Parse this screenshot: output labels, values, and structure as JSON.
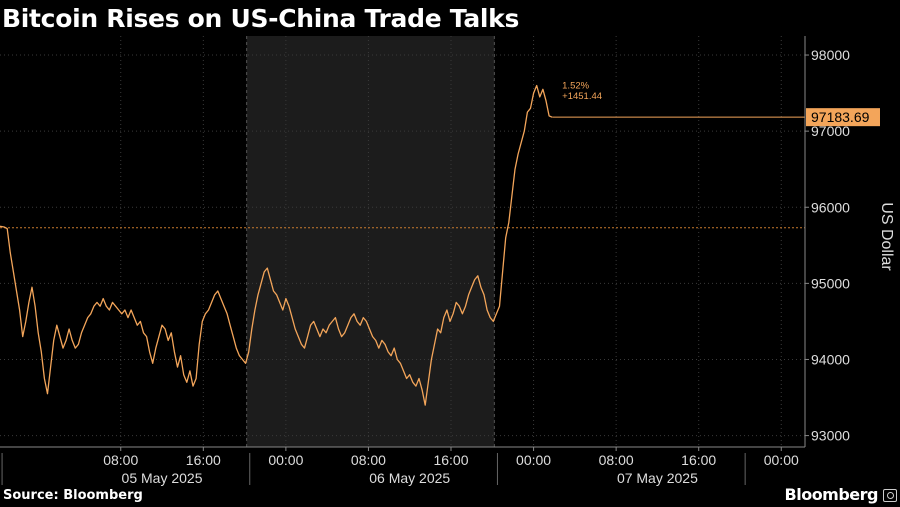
{
  "chart_data": {
    "type": "line",
    "title": "Bitcoin Rises on US-China Trade Talks",
    "ylabel": "US Dollar",
    "ylim": [
      92850,
      98250
    ],
    "yticks": [
      93000,
      94000,
      95000,
      96000,
      97000,
      98000
    ],
    "ytick_labels": [
      "93000",
      "94000",
      "95000",
      "96000",
      "97000",
      "98000"
    ],
    "x_time_range_hours": [
      -3.7,
      74.3
    ],
    "x_origin": "05 May 2025 00:00",
    "xticks_hours": [
      8,
      16,
      24,
      32,
      40,
      48,
      56,
      64,
      72
    ],
    "xtick_labels": [
      "08:00",
      "16:00",
      "00:00",
      "08:00",
      "16:00",
      "00:00",
      "08:00",
      "16:00",
      "00:00"
    ],
    "date_labels": [
      {
        "label": "05 May 2025",
        "hours": 12
      },
      {
        "label": "06 May 2025",
        "hours": 36
      },
      {
        "label": "07 May 2025",
        "hours": 60
      }
    ],
    "shaded_region_hours": [
      20.2,
      44.2
    ],
    "reference_line": 95730,
    "last_value_label": "97183.69",
    "last_value": 97183.69,
    "change_pct_label": "1.52%",
    "change_abs_label": "+1451.44",
    "series": [
      {
        "color": "#f3a55a",
        "points": [
          [
            -3.7,
            95750
          ],
          [
            -3.3,
            95740
          ],
          [
            -3.0,
            95720
          ],
          [
            -2.7,
            95400
          ],
          [
            -2.4,
            95150
          ],
          [
            -2.1,
            94900
          ],
          [
            -1.8,
            94650
          ],
          [
            -1.5,
            94300
          ],
          [
            -1.2,
            94500
          ],
          [
            -0.9,
            94750
          ],
          [
            -0.6,
            94950
          ],
          [
            -0.3,
            94700
          ],
          [
            0.0,
            94350
          ],
          [
            0.3,
            94100
          ],
          [
            0.6,
            93750
          ],
          [
            0.9,
            93550
          ],
          [
            1.2,
            93900
          ],
          [
            1.5,
            94250
          ],
          [
            1.8,
            94450
          ],
          [
            2.1,
            94300
          ],
          [
            2.4,
            94150
          ],
          [
            2.7,
            94250
          ],
          [
            3.0,
            94400
          ],
          [
            3.3,
            94250
          ],
          [
            3.6,
            94150
          ],
          [
            3.9,
            94200
          ],
          [
            4.2,
            94350
          ],
          [
            4.5,
            94450
          ],
          [
            4.8,
            94550
          ],
          [
            5.1,
            94600
          ],
          [
            5.4,
            94700
          ],
          [
            5.7,
            94750
          ],
          [
            6.0,
            94700
          ],
          [
            6.3,
            94800
          ],
          [
            6.6,
            94700
          ],
          [
            6.9,
            94650
          ],
          [
            7.2,
            94750
          ],
          [
            7.5,
            94700
          ],
          [
            7.8,
            94650
          ],
          [
            8.1,
            94600
          ],
          [
            8.4,
            94650
          ],
          [
            8.7,
            94550
          ],
          [
            9.0,
            94650
          ],
          [
            9.3,
            94550
          ],
          [
            9.6,
            94450
          ],
          [
            9.9,
            94500
          ],
          [
            10.2,
            94350
          ],
          [
            10.5,
            94300
          ],
          [
            10.8,
            94100
          ],
          [
            11.1,
            93950
          ],
          [
            11.4,
            94150
          ],
          [
            11.7,
            94300
          ],
          [
            12.0,
            94450
          ],
          [
            12.3,
            94400
          ],
          [
            12.6,
            94250
          ],
          [
            12.9,
            94350
          ],
          [
            13.2,
            94100
          ],
          [
            13.5,
            93900
          ],
          [
            13.8,
            94050
          ],
          [
            14.1,
            93800
          ],
          [
            14.4,
            93700
          ],
          [
            14.7,
            93850
          ],
          [
            15.0,
            93650
          ],
          [
            15.3,
            93750
          ],
          [
            15.6,
            94200
          ],
          [
            15.9,
            94500
          ],
          [
            16.2,
            94600
          ],
          [
            16.5,
            94650
          ],
          [
            16.8,
            94750
          ],
          [
            17.1,
            94850
          ],
          [
            17.4,
            94900
          ],
          [
            17.7,
            94800
          ],
          [
            18.0,
            94700
          ],
          [
            18.3,
            94600
          ],
          [
            18.6,
            94450
          ],
          [
            18.9,
            94300
          ],
          [
            19.2,
            94150
          ],
          [
            19.5,
            94050
          ],
          [
            19.8,
            94000
          ],
          [
            20.1,
            93950
          ],
          [
            20.4,
            94100
          ],
          [
            20.7,
            94400
          ],
          [
            21.0,
            94650
          ],
          [
            21.3,
            94850
          ],
          [
            21.6,
            95000
          ],
          [
            21.9,
            95150
          ],
          [
            22.2,
            95200
          ],
          [
            22.5,
            95050
          ],
          [
            22.8,
            94900
          ],
          [
            23.1,
            94850
          ],
          [
            23.4,
            94750
          ],
          [
            23.7,
            94650
          ],
          [
            24.0,
            94800
          ],
          [
            24.3,
            94700
          ],
          [
            24.6,
            94550
          ],
          [
            24.9,
            94400
          ],
          [
            25.2,
            94300
          ],
          [
            25.5,
            94200
          ],
          [
            25.8,
            94150
          ],
          [
            26.1,
            94300
          ],
          [
            26.4,
            94450
          ],
          [
            26.7,
            94500
          ],
          [
            27.0,
            94400
          ],
          [
            27.3,
            94300
          ],
          [
            27.6,
            94400
          ],
          [
            27.9,
            94350
          ],
          [
            28.2,
            94450
          ],
          [
            28.5,
            94500
          ],
          [
            28.8,
            94550
          ],
          [
            29.1,
            94400
          ],
          [
            29.4,
            94300
          ],
          [
            29.7,
            94350
          ],
          [
            30.0,
            94450
          ],
          [
            30.3,
            94550
          ],
          [
            30.6,
            94600
          ],
          [
            30.9,
            94500
          ],
          [
            31.2,
            94450
          ],
          [
            31.5,
            94550
          ],
          [
            31.8,
            94500
          ],
          [
            32.1,
            94400
          ],
          [
            32.4,
            94300
          ],
          [
            32.7,
            94250
          ],
          [
            33.0,
            94150
          ],
          [
            33.3,
            94250
          ],
          [
            33.6,
            94200
          ],
          [
            33.9,
            94100
          ],
          [
            34.2,
            94050
          ],
          [
            34.5,
            94150
          ],
          [
            34.8,
            94000
          ],
          [
            35.1,
            93950
          ],
          [
            35.4,
            93850
          ],
          [
            35.7,
            93750
          ],
          [
            36.0,
            93800
          ],
          [
            36.3,
            93700
          ],
          [
            36.6,
            93650
          ],
          [
            36.9,
            93750
          ],
          [
            37.2,
            93600
          ],
          [
            37.5,
            93400
          ],
          [
            37.8,
            93700
          ],
          [
            38.1,
            94000
          ],
          [
            38.4,
            94200
          ],
          [
            38.7,
            94400
          ],
          [
            39.0,
            94350
          ],
          [
            39.3,
            94550
          ],
          [
            39.6,
            94650
          ],
          [
            39.9,
            94500
          ],
          [
            40.2,
            94600
          ],
          [
            40.5,
            94750
          ],
          [
            40.8,
            94700
          ],
          [
            41.1,
            94600
          ],
          [
            41.4,
            94700
          ],
          [
            41.7,
            94850
          ],
          [
            42.0,
            94950
          ],
          [
            42.3,
            95050
          ],
          [
            42.6,
            95100
          ],
          [
            42.9,
            94950
          ],
          [
            43.2,
            94850
          ],
          [
            43.5,
            94650
          ],
          [
            43.8,
            94550
          ],
          [
            44.1,
            94500
          ],
          [
            44.4,
            94600
          ],
          [
            44.7,
            94700
          ],
          [
            45.0,
            95150
          ],
          [
            45.3,
            95600
          ],
          [
            45.6,
            95800
          ],
          [
            45.9,
            96150
          ],
          [
            46.2,
            96500
          ],
          [
            46.5,
            96700
          ],
          [
            46.8,
            96850
          ],
          [
            47.1,
            97000
          ],
          [
            47.4,
            97250
          ],
          [
            47.7,
            97300
          ],
          [
            48.0,
            97500
          ],
          [
            48.3,
            97600
          ],
          [
            48.6,
            97450
          ],
          [
            48.9,
            97550
          ],
          [
            49.2,
            97400
          ],
          [
            49.5,
            97200
          ],
          [
            49.8,
            97183.69
          ]
        ]
      }
    ]
  },
  "footer": {
    "source": "Source: Bloomberg",
    "brand": "Bloomberg"
  }
}
